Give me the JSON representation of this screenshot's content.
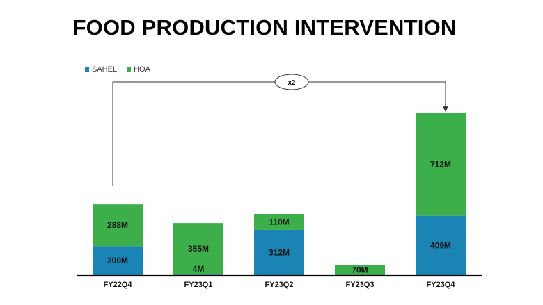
{
  "colors": {
    "sahel": "#1a84b5",
    "hoa": "#3cae4a",
    "hoa_border": "#2f9a3e",
    "sahel_border": "#14709c"
  },
  "chart_data": {
    "type": "bar",
    "stacked": true,
    "title": "FOOD PRODUCTION INTERVENTION",
    "categories": [
      "FY22Q4",
      "FY23Q1",
      "FY23Q2",
      "FY23Q3",
      "FY23Q4"
    ],
    "series": [
      {
        "name": "SAHEL",
        "values": [
          200,
          4,
          312,
          0,
          409
        ],
        "labels": [
          "200M",
          "4M",
          "312M",
          "",
          "409M"
        ]
      },
      {
        "name": "HOA",
        "values": [
          288,
          355,
          110,
          70,
          712
        ],
        "labels": [
          "288M",
          "355M",
          "110M",
          "70M",
          "712M"
        ]
      }
    ],
    "annotation": {
      "text": "x2",
      "from": "FY22Q4",
      "to": "FY23Q4"
    },
    "legend_position": "top-left",
    "grid": false
  }
}
